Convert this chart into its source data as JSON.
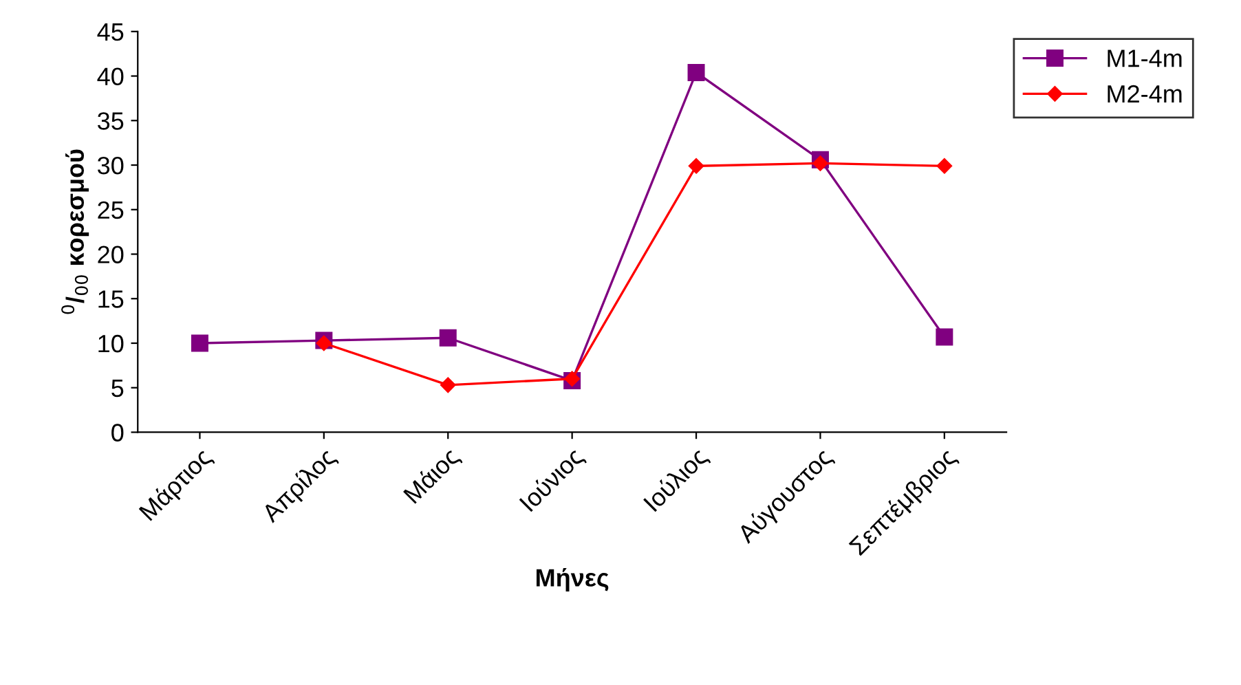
{
  "chart_data": {
    "type": "line",
    "xlabel": "Μήνες",
    "ylabel": "$^{0}$/$_{00}$ κορεσμού",
    "categories": [
      "Μάρτιος",
      "Απρίλος",
      "Μάιος",
      "Ιούνιος",
      "Ιούλιος",
      "Αύγουστος",
      "Σεπτέμβριος"
    ],
    "series": [
      {
        "name": "M1-4m",
        "color": "#800080",
        "marker": "square",
        "values": [
          10.0,
          10.3,
          10.6,
          5.8,
          40.4,
          30.6,
          10.7
        ]
      },
      {
        "name": "M2-4m",
        "color": "#ff0000",
        "marker": "diamond",
        "values": [
          null,
          10.0,
          5.3,
          6.0,
          29.9,
          30.2,
          29.9
        ]
      }
    ],
    "ylim": [
      0,
      45
    ],
    "yticks": [
      0,
      5,
      10,
      15,
      20,
      25,
      30,
      35,
      40,
      45
    ],
    "grid": false,
    "legend": "top right"
  }
}
